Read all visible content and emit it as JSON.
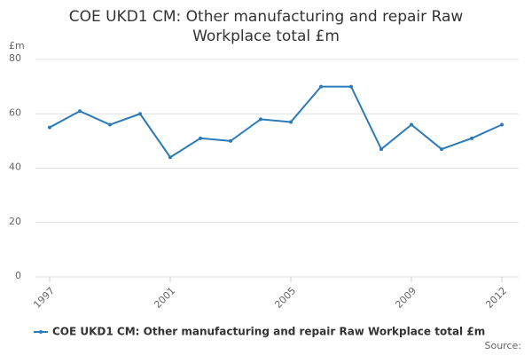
{
  "chart_data": {
    "type": "line",
    "title": "COE UKD1 CM: Other manufacturing and repair Raw Workplace total £m",
    "y_label": "£m",
    "source": "Source:",
    "x": [
      1997,
      1998,
      1999,
      2000,
      2001,
      2002,
      2003,
      2004,
      2005,
      2006,
      2007,
      2008,
      2009,
      2010,
      2011,
      2012
    ],
    "series": [
      {
        "name": "COE UKD1 CM: Other manufacturing and repair Raw Workplace total £m",
        "color": "#2b7bb9",
        "values": [
          55,
          61,
          56,
          60,
          44,
          51,
          50,
          58,
          57,
          70,
          70,
          47,
          56,
          47,
          51,
          56
        ]
      }
    ],
    "xlim": [
      1997,
      2012
    ],
    "xticks": [
      1997,
      2001,
      2005,
      2009,
      2012
    ],
    "ylim": [
      0,
      80
    ],
    "yticks": [
      0,
      20,
      40,
      60,
      80
    ],
    "grid": true
  }
}
